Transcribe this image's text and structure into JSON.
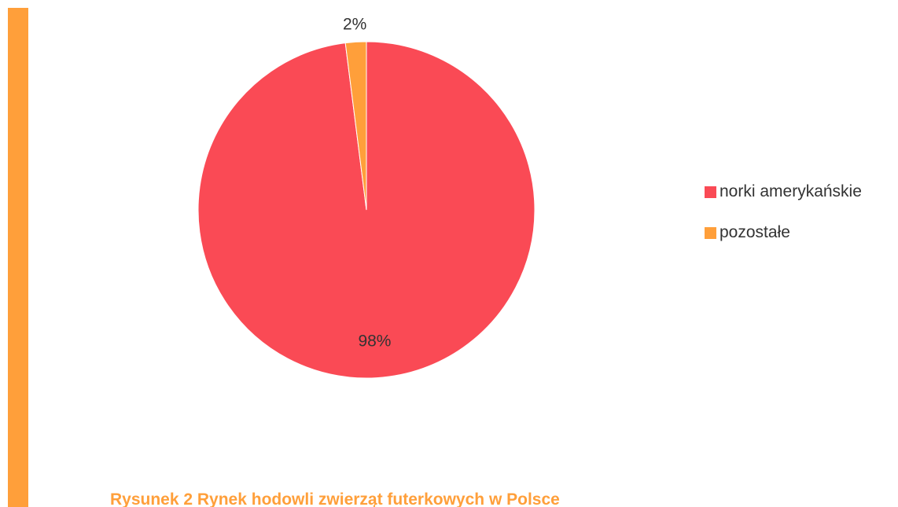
{
  "chart_data": {
    "type": "pie",
    "title": "",
    "slices": [
      {
        "name": "norki amerykańskie",
        "value": 98,
        "label": "98%",
        "color": "#FA4A55"
      },
      {
        "name": "pozostałe",
        "value": 2,
        "label": "2%",
        "color": "#FF9F3A"
      }
    ],
    "legend_position": "right"
  },
  "legend": {
    "items": [
      {
        "label": "norki amerykańskie",
        "color": "#FA4A55"
      },
      {
        "label": "pozostałe",
        "color": "#FF9F3A"
      }
    ]
  },
  "caption": "Rysunek 2 Rynek hodowli zwierząt futerkowych w Polsce",
  "colors": {
    "accent": "#FF9F3A",
    "primary": "#FA4A55"
  }
}
